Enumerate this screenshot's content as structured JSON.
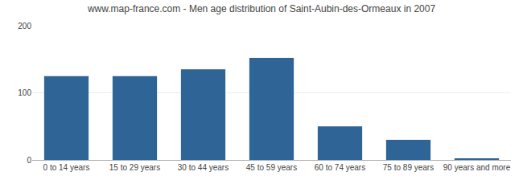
{
  "chart_data": {
    "type": "bar",
    "title": "www.map-france.com - Men age distribution of Saint-Aubin-des-Ormeaux in 2007",
    "categories": [
      "0 to 14 years",
      "15 to 29 years",
      "30 to 44 years",
      "45 to 59 years",
      "60 to 74 years",
      "75 to 89 years",
      "90 years and more"
    ],
    "values": [
      125,
      125,
      135,
      152,
      50,
      30,
      2
    ],
    "color": "#2e6496",
    "ylim": [
      0,
      200
    ],
    "yticks": [
      0,
      100,
      200
    ],
    "grid": true
  }
}
